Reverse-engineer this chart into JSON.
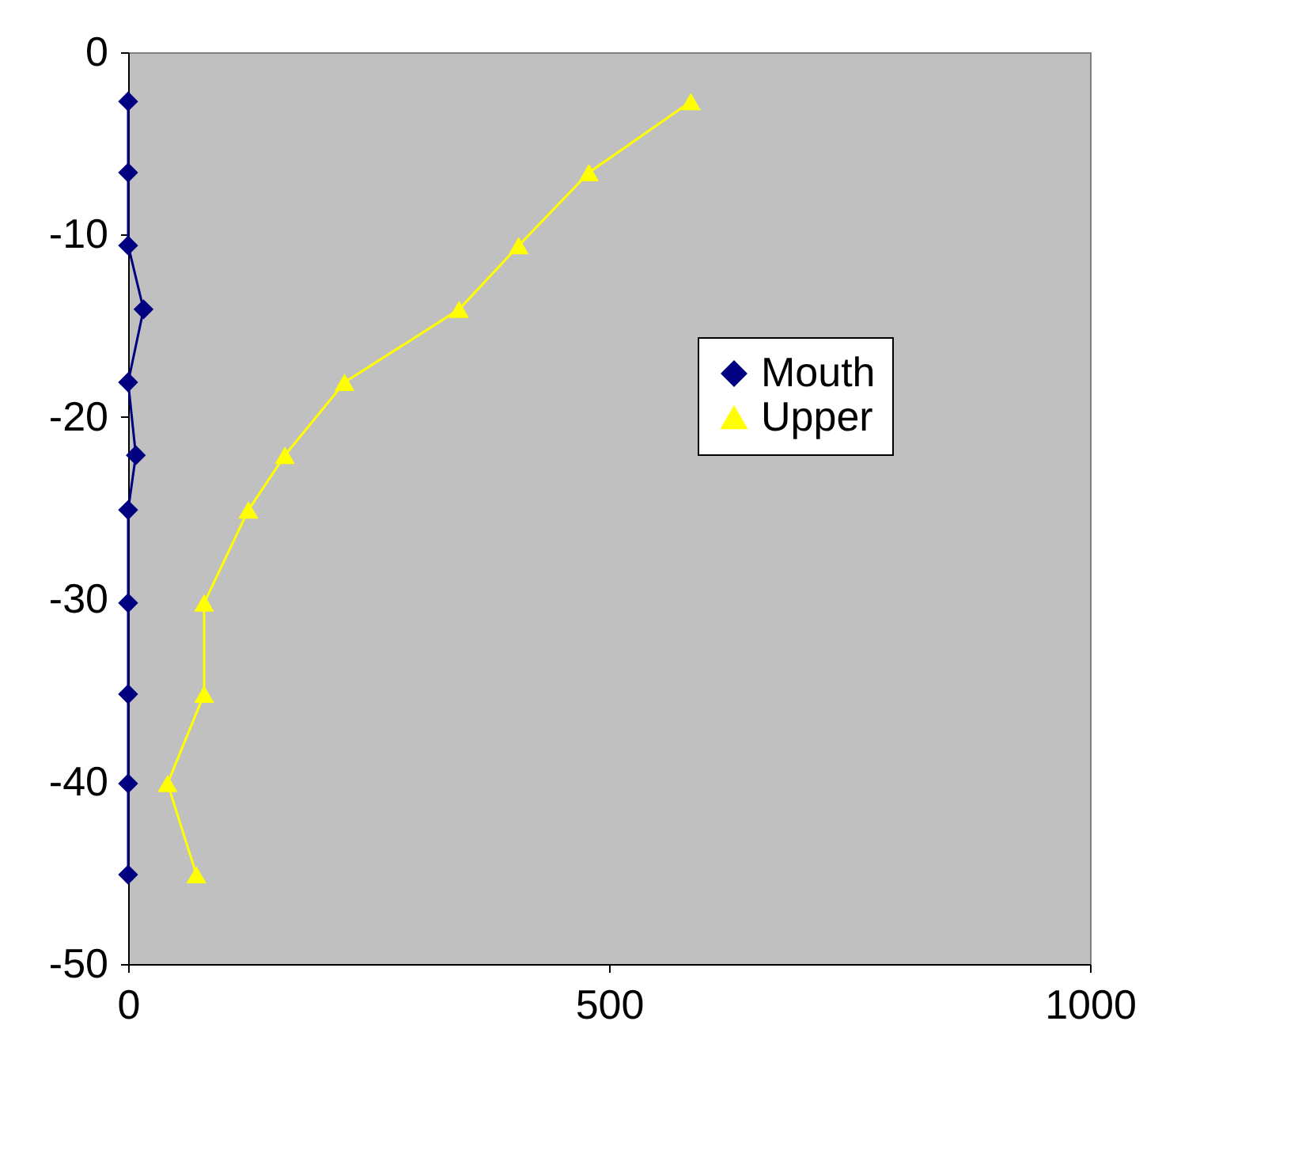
{
  "chart_data": {
    "type": "line",
    "xlim": [
      0,
      1000
    ],
    "xticks": [
      0,
      500,
      1000
    ],
    "ylim": [
      -50,
      0
    ],
    "yticks": [
      -50,
      -40,
      -30,
      -20,
      -10,
      0
    ],
    "grid": false,
    "legend": "right",
    "line_style": "solid",
    "series": [
      {
        "name": "Mouth",
        "color": "#000080",
        "marker": "diamond",
        "x": [
          0,
          0,
          0,
          16,
          0,
          8,
          0,
          0,
          0,
          0,
          0
        ],
        "values": [
          -2.7,
          -6.6,
          -10.6,
          -14.1,
          -18.1,
          -22.1,
          -25.1,
          -30.2,
          -35.2,
          -40.1,
          -45.1
        ]
      },
      {
        "name": "Upper",
        "color": "#ffff00",
        "marker": "triangle",
        "x": [
          585,
          479,
          406,
          344,
          225,
          163,
          125,
          79,
          79,
          41,
          71
        ],
        "values": [
          -2.7,
          -6.6,
          -10.6,
          -14.1,
          -18.1,
          -22.1,
          -25.1,
          -30.2,
          -35.2,
          -40.1,
          -45.1
        ]
      }
    ]
  }
}
